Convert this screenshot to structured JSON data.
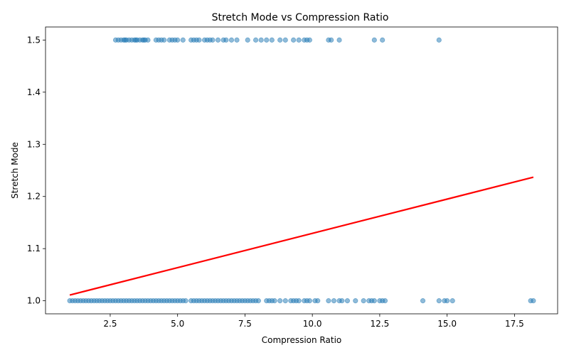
{
  "chart_data": {
    "type": "scatter",
    "title": "Stretch Mode vs Compression Ratio",
    "xlabel": "Compression Ratio",
    "ylabel": "Stretch Mode",
    "xlim": [
      0.1,
      19.1
    ],
    "ylim": [
      0.975,
      1.525
    ],
    "xticks": [
      2.5,
      5.0,
      7.5,
      10.0,
      12.5,
      15.0,
      17.5
    ],
    "xtick_labels": [
      "2.5",
      "5.0",
      "7.5",
      "10.0",
      "12.5",
      "15.0",
      "17.5"
    ],
    "yticks": [
      1.0,
      1.1,
      1.2,
      1.3,
      1.4,
      1.5
    ],
    "ytick_labels": [
      "1.0",
      "1.1",
      "1.2",
      "1.3",
      "1.4",
      "1.5"
    ],
    "grid": false,
    "point_color": "#1f77b4",
    "point_alpha": 0.5,
    "trend_color": "#ff0000",
    "trendline": {
      "x": [
        1.0,
        18.2
      ],
      "y": [
        1.011,
        1.237
      ]
    },
    "series": [
      {
        "y": 1.5,
        "x": [
          2.7,
          2.8,
          2.9,
          3.0,
          3.05,
          3.1,
          3.2,
          3.3,
          3.4,
          3.45,
          3.5,
          3.6,
          3.7,
          3.75,
          3.8,
          3.9,
          4.2,
          4.3,
          4.4,
          4.5,
          4.7,
          4.8,
          4.9,
          5.0,
          5.2,
          5.5,
          5.6,
          5.7,
          5.8,
          6.0,
          6.1,
          6.2,
          6.3,
          6.5,
          6.7,
          6.8,
          7.0,
          7.2,
          7.6,
          7.9,
          8.1,
          8.3,
          8.5,
          8.8,
          9.0,
          9.3,
          9.5,
          9.7,
          9.8,
          9.9,
          10.6,
          10.7,
          11.0,
          12.3,
          12.6,
          14.7
        ]
      },
      {
        "y": 1.0,
        "x": [
          1.0,
          1.1,
          1.2,
          1.3,
          1.4,
          1.5,
          1.6,
          1.7,
          1.8,
          1.9,
          2.0,
          2.1,
          2.2,
          2.3,
          2.4,
          2.5,
          2.6,
          2.7,
          2.8,
          2.9,
          3.0,
          3.1,
          3.2,
          3.3,
          3.4,
          3.5,
          3.6,
          3.7,
          3.8,
          3.9,
          4.0,
          4.1,
          4.2,
          4.3,
          4.4,
          4.5,
          4.6,
          4.7,
          4.8,
          4.9,
          5.0,
          5.1,
          5.2,
          5.3,
          5.5,
          5.6,
          5.7,
          5.8,
          5.9,
          6.0,
          6.1,
          6.2,
          6.3,
          6.4,
          6.5,
          6.6,
          6.7,
          6.8,
          6.9,
          7.0,
          7.1,
          7.2,
          7.3,
          7.4,
          7.5,
          7.6,
          7.7,
          7.8,
          7.9,
          8.0,
          8.3,
          8.4,
          8.5,
          8.6,
          8.8,
          9.0,
          9.2,
          9.3,
          9.4,
          9.5,
          9.7,
          9.8,
          9.9,
          10.1,
          10.2,
          10.6,
          10.8,
          11.0,
          11.1,
          11.3,
          11.6,
          11.9,
          12.1,
          12.2,
          12.3,
          12.5,
          12.6,
          12.7,
          14.1,
          14.7,
          14.9,
          15.0,
          15.2,
          18.1,
          18.2
        ]
      }
    ]
  }
}
